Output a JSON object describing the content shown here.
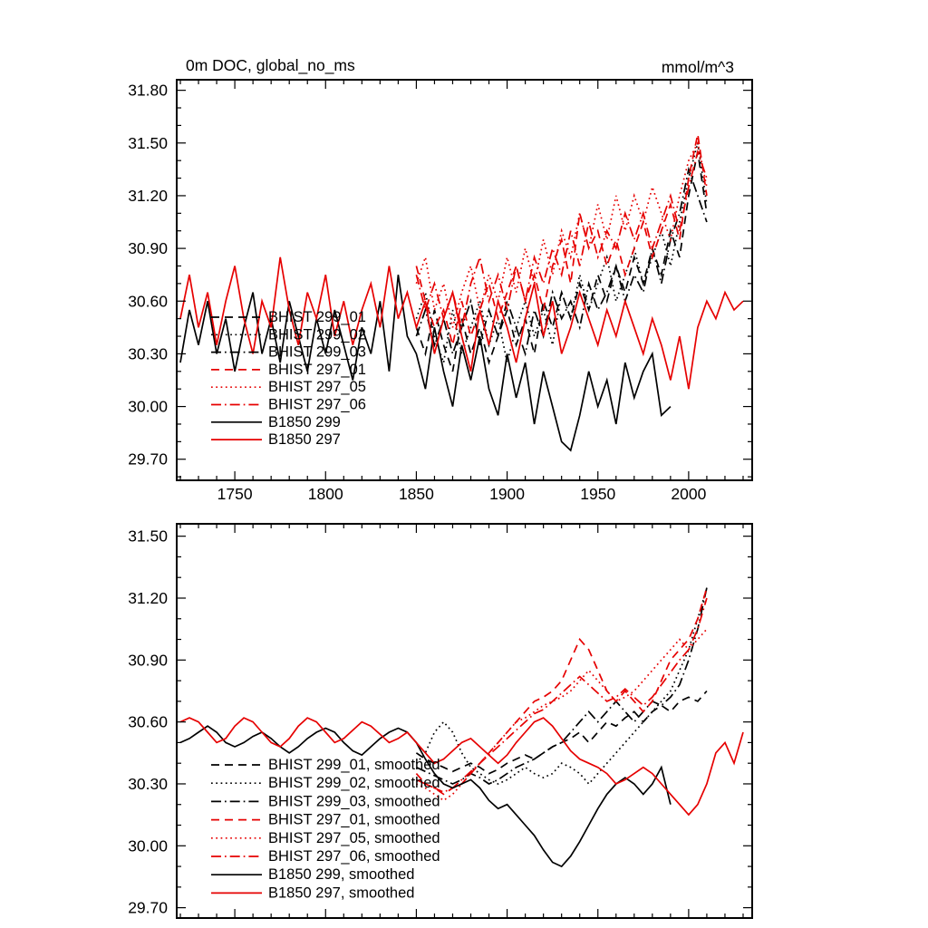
{
  "colors": {
    "black": "#000000",
    "red": "#e60000"
  },
  "chart_data": [
    {
      "type": "line",
      "title": "0m DOC, global_no_ms",
      "right_label": "mmol/m^3",
      "xlabel": "",
      "ylabel": "",
      "xlim": [
        1718,
        2035
      ],
      "ylim": [
        29.58,
        31.86
      ],
      "x_major_ticks": [
        1750,
        1800,
        1850,
        1900,
        1950,
        2000
      ],
      "x_tick_labels": [
        "1750",
        "1800",
        "1850",
        "1900",
        "1950",
        "2000"
      ],
      "x_minor_step": 10,
      "y_major_ticks": [
        29.7,
        30.0,
        30.3,
        30.6,
        30.9,
        31.2,
        31.5,
        31.8
      ],
      "y_tick_labels": [
        "29.70",
        "30.00",
        "30.30",
        "30.60",
        "30.90",
        "31.20",
        "31.50",
        "31.80"
      ],
      "y_minor_step": 0.1,
      "grid": false,
      "legend_position": "inside-left",
      "series": [
        {
          "name": "BHIST 299_01",
          "color": "black",
          "dash": "dashed",
          "x_start": 1850,
          "x_step": 5,
          "values": [
            30.45,
            30.3,
            30.55,
            30.35,
            30.2,
            30.5,
            30.3,
            30.45,
            30.25,
            30.4,
            30.55,
            30.35,
            30.5,
            30.3,
            30.6,
            30.45,
            30.65,
            30.5,
            30.7,
            30.55,
            30.75,
            30.6,
            30.8,
            30.65,
            30.85,
            30.7,
            30.9,
            30.75,
            31.0,
            30.85,
            31.2,
            31.45,
            31.1
          ]
        },
        {
          "name": "BHIST 299_02",
          "color": "black",
          "dash": "dotted",
          "x_start": 1850,
          "x_step": 5,
          "values": [
            30.5,
            30.65,
            30.4,
            30.25,
            30.55,
            30.3,
            30.45,
            30.6,
            30.35,
            30.5,
            30.25,
            30.45,
            30.6,
            30.4,
            30.55,
            30.35,
            30.65,
            30.5,
            30.75,
            30.55,
            30.7,
            30.85,
            30.6,
            30.75,
            30.9,
            30.7,
            30.85,
            31.0,
            30.8,
            31.05,
            31.3,
            31.5,
            31.15
          ]
        },
        {
          "name": "BHIST 299_03",
          "color": "black",
          "dash": "dashdot",
          "x_start": 1850,
          "x_step": 5,
          "values": [
            30.4,
            30.55,
            30.35,
            30.5,
            30.3,
            30.45,
            30.6,
            30.35,
            30.55,
            30.4,
            30.6,
            30.45,
            30.3,
            30.55,
            30.4,
            30.65,
            30.5,
            30.6,
            30.45,
            30.7,
            30.55,
            30.65,
            30.8,
            30.6,
            30.75,
            30.65,
            30.9,
            30.7,
            30.95,
            31.1,
            31.35,
            31.2,
            31.05
          ]
        },
        {
          "name": "BHIST 297_01",
          "color": "red",
          "dash": "dashed",
          "x_start": 1850,
          "x_step": 5,
          "values": [
            30.8,
            30.6,
            30.45,
            30.55,
            30.35,
            30.6,
            30.4,
            30.55,
            30.7,
            30.5,
            30.65,
            30.8,
            30.6,
            30.75,
            30.55,
            30.8,
            30.95,
            30.7,
            31.1,
            30.9,
            31.0,
            30.8,
            30.95,
            30.75,
            30.9,
            31.05,
            30.85,
            31.0,
            31.15,
            30.95,
            31.3,
            31.55,
            31.2
          ]
        },
        {
          "name": "BHIST 297_05",
          "color": "red",
          "dash": "dotted",
          "x_start": 1850,
          "x_step": 5,
          "values": [
            30.7,
            30.85,
            30.55,
            30.7,
            30.45,
            30.65,
            30.8,
            30.55,
            30.75,
            30.6,
            30.85,
            30.65,
            30.9,
            30.7,
            30.95,
            30.75,
            31.0,
            30.85,
            31.1,
            30.9,
            31.15,
            30.95,
            31.2,
            31.0,
            31.2,
            31.05,
            31.25,
            31.1,
            30.95,
            31.2,
            31.4,
            31.5,
            31.25
          ]
        },
        {
          "name": "BHIST 297_06",
          "color": "red",
          "dash": "dashdot",
          "x_start": 1850,
          "x_step": 5,
          "values": [
            30.75,
            30.55,
            30.7,
            30.5,
            30.65,
            30.45,
            30.7,
            30.85,
            30.6,
            30.75,
            30.55,
            30.8,
            30.6,
            30.85,
            30.7,
            30.9,
            30.75,
            31.0,
            30.8,
            31.05,
            30.85,
            31.0,
            30.9,
            31.1,
            30.95,
            31.1,
            30.9,
            31.05,
            31.2,
            31.0,
            31.25,
            31.45,
            31.3
          ]
        },
        {
          "name": "B1850 299",
          "color": "black",
          "dash": "solid",
          "x_start": 1720,
          "x_step": 5,
          "values": [
            30.25,
            30.55,
            30.35,
            30.6,
            30.3,
            30.5,
            30.2,
            30.45,
            30.65,
            30.3,
            30.5,
            30.25,
            30.6,
            30.4,
            30.2,
            30.5,
            30.3,
            30.55,
            30.35,
            30.15,
            30.45,
            30.3,
            30.6,
            30.2,
            30.75,
            30.4,
            30.3,
            30.1,
            30.45,
            30.2,
            30.0,
            30.35,
            30.15,
            30.4,
            30.1,
            29.95,
            30.3,
            30.05,
            30.25,
            29.9,
            30.2,
            30.0,
            29.8,
            29.75,
            29.95,
            30.2,
            30.0,
            30.15,
            29.9,
            30.25,
            30.05,
            30.2,
            30.3,
            29.95,
            30.0
          ]
        },
        {
          "name": "B1850 297",
          "color": "red",
          "dash": "solid",
          "x_start": 1720,
          "x_step": 5,
          "values": [
            30.5,
            30.75,
            30.45,
            30.65,
            30.35,
            30.6,
            30.8,
            30.5,
            30.3,
            30.6,
            30.45,
            30.85,
            30.55,
            30.35,
            30.65,
            30.5,
            30.75,
            30.4,
            30.6,
            30.35,
            30.55,
            30.7,
            30.45,
            30.8,
            30.5,
            30.65,
            30.45,
            30.6,
            30.3,
            30.5,
            30.65,
            30.4,
            30.2,
            30.55,
            30.35,
            30.6,
            30.45,
            30.25,
            30.5,
            30.7,
            30.4,
            30.6,
            30.3,
            30.45,
            30.65,
            30.5,
            30.35,
            30.55,
            30.4,
            30.6,
            30.45,
            30.3,
            30.5,
            30.35,
            30.15,
            30.4,
            30.1,
            30.45,
            30.6,
            30.5,
            30.65,
            30.55,
            30.6
          ]
        }
      ]
    },
    {
      "type": "line",
      "title": "",
      "right_label": "",
      "xlabel": "",
      "ylabel": "",
      "xlim": [
        1718,
        2035
      ],
      "ylim": [
        29.65,
        31.56
      ],
      "x_major_ticks": [
        1750,
        1800,
        1850,
        1900,
        1950,
        2000
      ],
      "x_tick_labels": [
        "1750",
        "1800",
        "1850",
        "1900",
        "1950",
        "2000"
      ],
      "x_minor_step": 10,
      "y_major_ticks": [
        29.7,
        30.0,
        30.3,
        30.6,
        30.9,
        31.2,
        31.5
      ],
      "y_tick_labels": [
        "29.70",
        "30.00",
        "30.30",
        "30.60",
        "30.90",
        "31.20",
        "31.50"
      ],
      "y_minor_step": 0.1,
      "grid": false,
      "legend_position": "inside-left",
      "series": [
        {
          "name": "BHIST 299_01, smoothed",
          "color": "black",
          "dash": "dashed",
          "x_start": 1850,
          "x_step": 5,
          "values": [
            30.45,
            30.42,
            30.4,
            30.38,
            30.36,
            30.38,
            30.4,
            30.38,
            30.35,
            30.37,
            30.4,
            30.42,
            30.44,
            30.42,
            30.45,
            30.48,
            30.5,
            30.52,
            30.55,
            30.5,
            30.55,
            30.6,
            30.58,
            30.62,
            30.65,
            30.6,
            30.65,
            30.68,
            30.65,
            30.7,
            30.72,
            30.7,
            30.75
          ]
        },
        {
          "name": "BHIST 299_02, smoothed",
          "color": "black",
          "dash": "dotted",
          "x_start": 1850,
          "x_step": 5,
          "values": [
            30.4,
            30.45,
            30.55,
            30.6,
            30.55,
            30.45,
            30.38,
            30.35,
            30.32,
            30.3,
            30.32,
            30.35,
            30.38,
            30.35,
            30.33,
            30.35,
            30.4,
            30.38,
            30.35,
            30.3,
            30.35,
            30.4,
            30.45,
            30.5,
            30.55,
            30.6,
            30.65,
            30.7,
            30.75,
            30.85,
            30.95,
            31.1,
            31.25
          ]
        },
        {
          "name": "BHIST 299_03, smoothed",
          "color": "black",
          "dash": "dashdot",
          "x_start": 1850,
          "x_step": 5,
          "values": [
            30.38,
            30.36,
            30.34,
            30.32,
            30.3,
            30.32,
            30.35,
            30.33,
            30.3,
            30.32,
            30.35,
            30.38,
            30.4,
            30.42,
            30.45,
            30.48,
            30.5,
            30.55,
            30.6,
            30.65,
            30.6,
            30.65,
            30.7,
            30.65,
            30.6,
            30.65,
            30.7,
            30.68,
            30.72,
            30.78,
            30.9,
            31.05,
            31.25
          ]
        },
        {
          "name": "BHIST 297_01, smoothed",
          "color": "red",
          "dash": "dashed",
          "x_start": 1850,
          "x_step": 5,
          "values": [
            30.35,
            30.3,
            30.28,
            30.25,
            30.28,
            30.3,
            30.35,
            30.4,
            30.45,
            30.5,
            30.55,
            30.6,
            30.65,
            30.7,
            30.72,
            30.75,
            30.8,
            30.9,
            31.0,
            30.95,
            30.85,
            30.75,
            30.7,
            30.75,
            30.7,
            30.65,
            30.7,
            30.8,
            30.9,
            30.95,
            31.0,
            31.1,
            31.25
          ]
        },
        {
          "name": "BHIST 297_05, smoothed",
          "color": "red",
          "dash": "dotted",
          "x_start": 1850,
          "x_step": 5,
          "values": [
            30.3,
            30.28,
            30.25,
            30.22,
            30.25,
            30.3,
            30.35,
            30.4,
            30.45,
            30.5,
            30.55,
            30.6,
            30.62,
            30.65,
            30.68,
            30.7,
            30.72,
            30.75,
            30.8,
            30.85,
            30.8,
            30.75,
            30.7,
            30.72,
            30.75,
            30.8,
            30.85,
            30.9,
            30.95,
            31.0,
            30.95,
            31.0,
            31.05
          ]
        },
        {
          "name": "BHIST 297_06, smoothed",
          "color": "red",
          "dash": "dashdot",
          "x_start": 1850,
          "x_step": 5,
          "values": [
            30.32,
            30.3,
            30.28,
            30.26,
            30.28,
            30.32,
            30.36,
            30.4,
            30.44,
            30.48,
            30.52,
            30.56,
            30.6,
            30.64,
            30.66,
            30.7,
            30.74,
            30.78,
            30.82,
            30.78,
            30.74,
            30.7,
            30.72,
            30.76,
            30.72,
            30.68,
            30.72,
            30.78,
            30.84,
            30.9,
            30.95,
            31.05,
            31.2
          ]
        },
        {
          "name": "B1850 299, smoothed",
          "color": "black",
          "dash": "solid",
          "x_start": 1720,
          "x_step": 5,
          "values": [
            30.5,
            30.52,
            30.55,
            30.58,
            30.55,
            30.5,
            30.48,
            30.5,
            30.53,
            30.55,
            30.52,
            30.48,
            30.45,
            30.48,
            30.52,
            30.55,
            30.57,
            30.55,
            30.5,
            30.46,
            30.44,
            30.48,
            30.52,
            30.55,
            30.57,
            30.55,
            30.5,
            30.42,
            30.35,
            30.3,
            30.28,
            30.3,
            30.32,
            30.28,
            30.22,
            30.18,
            30.2,
            30.15,
            30.1,
            30.05,
            29.98,
            29.92,
            29.9,
            29.95,
            30.02,
            30.1,
            30.18,
            30.25,
            30.3,
            30.33,
            30.3,
            30.25,
            30.3,
            30.38,
            30.2
          ]
        },
        {
          "name": "B1850 297, smoothed",
          "color": "red",
          "dash": "solid",
          "x_start": 1720,
          "x_step": 5,
          "values": [
            30.6,
            30.62,
            30.6,
            30.55,
            30.5,
            30.52,
            30.58,
            30.62,
            30.6,
            30.55,
            30.5,
            30.48,
            30.52,
            30.58,
            30.62,
            30.6,
            30.55,
            30.5,
            30.52,
            30.56,
            30.6,
            30.58,
            30.54,
            30.5,
            30.52,
            30.55,
            30.5,
            30.45,
            30.4,
            30.42,
            30.46,
            30.5,
            30.52,
            30.48,
            30.44,
            30.4,
            30.44,
            30.5,
            30.55,
            30.6,
            30.62,
            30.58,
            30.52,
            30.46,
            30.42,
            30.4,
            30.38,
            30.35,
            30.3,
            30.32,
            30.35,
            30.38,
            30.35,
            30.3,
            30.25,
            30.2,
            30.15,
            30.2,
            30.3,
            30.45,
            30.5,
            30.4,
            30.55
          ]
        }
      ]
    }
  ]
}
